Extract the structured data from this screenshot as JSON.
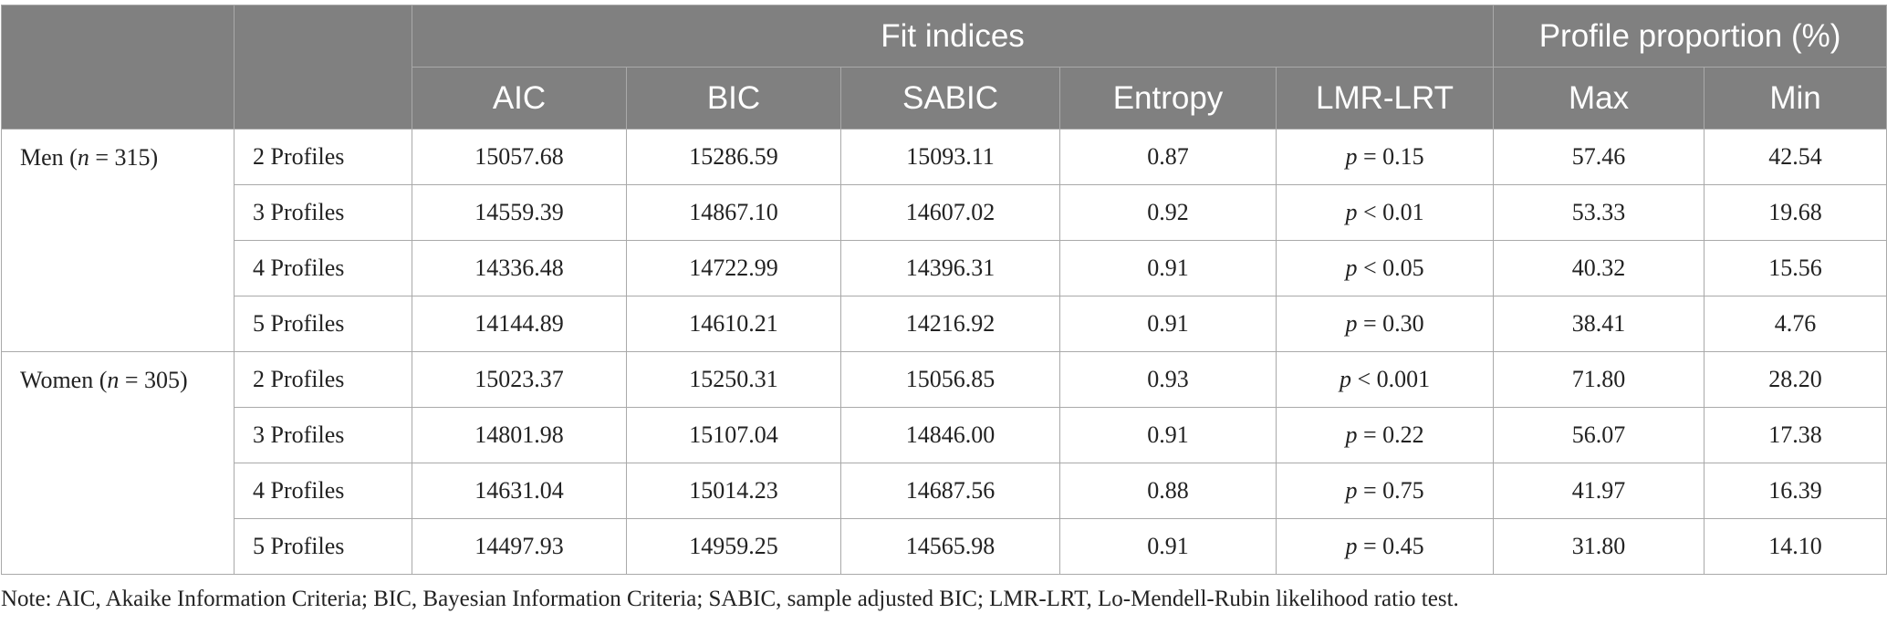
{
  "header": {
    "fit_indices": "Fit indices",
    "profile_proportion": "Profile proportion (%)",
    "columns": [
      "AIC",
      "BIC",
      "SABIC",
      "Entropy",
      "LMR-LRT",
      "Max",
      "Min"
    ]
  },
  "groups": [
    {
      "label": "Men (",
      "n_symbol": "n",
      "n_value": " = 315)",
      "rows": [
        {
          "profile": "2 Profiles",
          "aic": "15057.68",
          "bic": "15286.59",
          "sabic": "15093.11",
          "entropy": "0.87",
          "p_symbol": "p",
          "p_value": " = 0.15",
          "max": "57.46",
          "min": "42.54"
        },
        {
          "profile": "3 Profiles",
          "aic": "14559.39",
          "bic": "14867.10",
          "sabic": "14607.02",
          "entropy": "0.92",
          "p_symbol": "p",
          "p_value": " < 0.01",
          "max": "53.33",
          "min": "19.68"
        },
        {
          "profile": "4 Profiles",
          "aic": "14336.48",
          "bic": "14722.99",
          "sabic": "14396.31",
          "entropy": "0.91",
          "p_symbol": "p",
          "p_value": " < 0.05",
          "max": "40.32",
          "min": "15.56"
        },
        {
          "profile": "5 Profiles",
          "aic": "14144.89",
          "bic": "14610.21",
          "sabic": "14216.92",
          "entropy": "0.91",
          "p_symbol": "p",
          "p_value": " = 0.30",
          "max": "38.41",
          "min": "4.76"
        }
      ]
    },
    {
      "label": "Women (",
      "n_symbol": "n",
      "n_value": " = 305)",
      "rows": [
        {
          "profile": "2 Profiles",
          "aic": "15023.37",
          "bic": "15250.31",
          "sabic": "15056.85",
          "entropy": "0.93",
          "p_symbol": "p",
          "p_value": " < 0.001",
          "max": "71.80",
          "min": "28.20"
        },
        {
          "profile": "3 Profiles",
          "aic": "14801.98",
          "bic": "15107.04",
          "sabic": "14846.00",
          "entropy": "0.91",
          "p_symbol": "p",
          "p_value": " = 0.22",
          "max": "56.07",
          "min": "17.38"
        },
        {
          "profile": "4 Profiles",
          "aic": "14631.04",
          "bic": "15014.23",
          "sabic": "14687.56",
          "entropy": "0.88",
          "p_symbol": "p",
          "p_value": " = 0.75",
          "max": "41.97",
          "min": "16.39"
        },
        {
          "profile": "5 Profiles",
          "aic": "14497.93",
          "bic": "14959.25",
          "sabic": "14565.98",
          "entropy": "0.91",
          "p_symbol": "p",
          "p_value": " = 0.45",
          "max": "31.80",
          "min": "14.10"
        }
      ]
    }
  ],
  "note": "Note: AIC, Akaike Information Criteria; BIC, Bayesian Information Criteria; SABIC, sample adjusted BIC; LMR-LRT, Lo-Mendell-Rubin likelihood ratio test."
}
